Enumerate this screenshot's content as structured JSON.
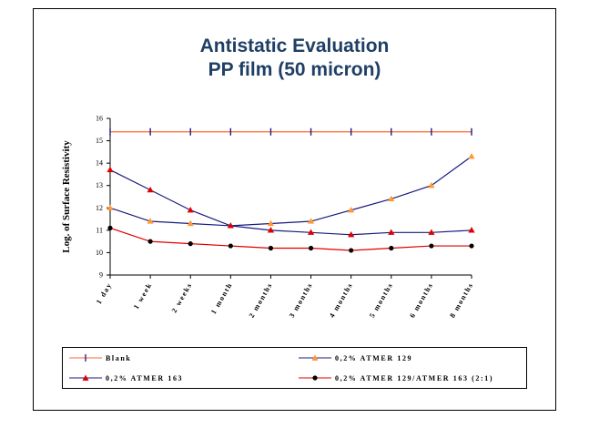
{
  "chart_data": {
    "type": "line",
    "title_line1": "Antistatic Evaluation",
    "title_line2": "PP film (50 micron)",
    "ylabel": "Log. of Surface Resistivity",
    "xlabel": "",
    "ylim": [
      9,
      16
    ],
    "yticks": [
      9,
      10,
      11,
      12,
      13,
      14,
      15,
      16
    ],
    "categories": [
      "1 day",
      "1 week",
      "2 weeks",
      "1 month",
      "2 months",
      "3 months",
      "4 months",
      "5 months",
      "6 months",
      "8 months"
    ],
    "grid": false,
    "legend_position": "bottom",
    "series": [
      {
        "name": "Blank",
        "color": "#ff6633",
        "marker": "plus",
        "marker_color": "#1a1a80",
        "values": [
          15.4,
          15.4,
          15.4,
          15.4,
          15.4,
          15.4,
          15.4,
          15.4,
          15.4,
          15.4
        ]
      },
      {
        "name": "0,2% ATMER 129",
        "color": "#1a1a80",
        "marker": "triangle",
        "marker_color": "#ff9933",
        "values": [
          12.0,
          11.4,
          11.3,
          11.2,
          11.3,
          11.4,
          11.9,
          12.4,
          13.0,
          14.3
        ]
      },
      {
        "name": "0,2% ATMER 163",
        "color": "#1a1a80",
        "marker": "triangle",
        "marker_color": "#e00000",
        "values": [
          13.7,
          12.8,
          11.9,
          11.2,
          11.0,
          10.9,
          10.8,
          10.9,
          10.9,
          11.0
        ]
      },
      {
        "name": "0,2% ATMER 129/ATMER 163 (2:1)",
        "color": "#e00000",
        "marker": "circle",
        "marker_color": "#000000",
        "values": [
          11.1,
          10.5,
          10.4,
          10.3,
          10.2,
          10.2,
          10.1,
          10.2,
          10.3,
          10.3
        ]
      }
    ]
  }
}
